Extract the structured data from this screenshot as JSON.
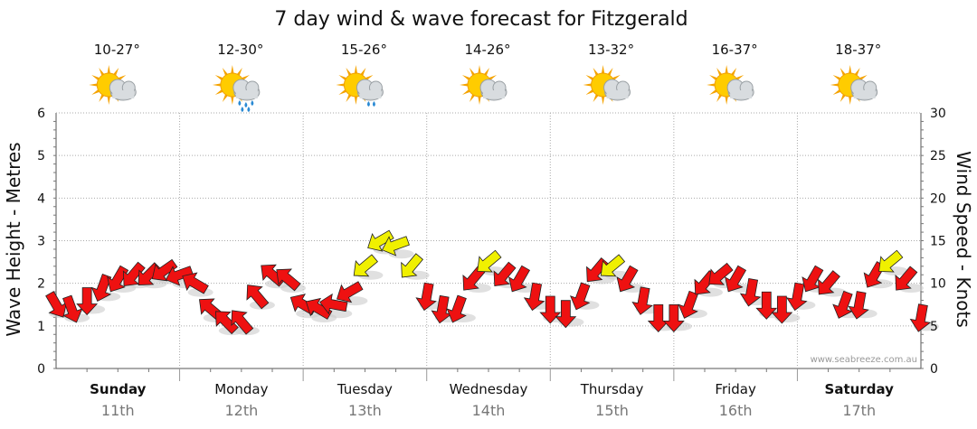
{
  "chart_data": {
    "type": "line",
    "title": "7 day wind & wave forecast for Fitzgerald",
    "ylabel_left": "Wave Height - Metres",
    "ylabel_right": "Wind Speed - Knots",
    "ylim_left": [
      0,
      6
    ],
    "ylim_right": [
      0,
      30
    ],
    "yticks_left": [
      "0",
      "1",
      "2",
      "3",
      "4",
      "5",
      "6"
    ],
    "yticks_right": [
      "0",
      "5",
      "10",
      "15",
      "20",
      "25",
      "30"
    ],
    "grid": true,
    "days": [
      {
        "name": "Sunday",
        "date": "11th",
        "temp": "10-27°",
        "weather": "partly-cloudy",
        "bold": true
      },
      {
        "name": "Monday",
        "date": "12th",
        "temp": "12-30°",
        "weather": "rain",
        "bold": false
      },
      {
        "name": "Tuesday",
        "date": "13th",
        "temp": "15-26°",
        "weather": "showers",
        "bold": false
      },
      {
        "name": "Wednesday",
        "date": "14th",
        "temp": "14-26°",
        "weather": "partly-cloudy",
        "bold": false
      },
      {
        "name": "Thursday",
        "date": "15th",
        "temp": "13-32°",
        "weather": "partly-cloudy",
        "bold": false
      },
      {
        "name": "Friday",
        "date": "16th",
        "temp": "16-37°",
        "weather": "partly-cloudy",
        "bold": false
      },
      {
        "name": "Saturday",
        "date": "17th",
        "temp": "18-37°",
        "weather": "partly-cloudy",
        "bold": true
      }
    ],
    "wind_series": {
      "name": "Wind",
      "x_hours": [
        0,
        3,
        6,
        9,
        12,
        15,
        18,
        21,
        24,
        27,
        30,
        33,
        36,
        39,
        42,
        45,
        48,
        51,
        54,
        57,
        60,
        63,
        66,
        69,
        72,
        75,
        78,
        81,
        84,
        87,
        90,
        93,
        96,
        99,
        102,
        105,
        108,
        111,
        114,
        117,
        120,
        123,
        126,
        129,
        132,
        135,
        138,
        141,
        144,
        147,
        150,
        153,
        156,
        159,
        162,
        165,
        168
      ],
      "knots": [
        7.5,
        7,
        8,
        9.5,
        10.5,
        11,
        11,
        11.5,
        11,
        10,
        7,
        5.5,
        5.5,
        8.5,
        11,
        10.5,
        7.5,
        7,
        7.5,
        9,
        12,
        15,
        14.5,
        12,
        8.5,
        7,
        7,
        10.5,
        12.5,
        11,
        10.5,
        8.5,
        7,
        6.5,
        8.5,
        11.5,
        12,
        10.5,
        8,
        6,
        6,
        7.5,
        10,
        11,
        10.5,
        9,
        7.5,
        7,
        8.5,
        10.5,
        10,
        7.5,
        7.5,
        11,
        12.5,
        10.5,
        6
      ],
      "direction_deg": [
        60,
        70,
        90,
        110,
        120,
        130,
        135,
        145,
        160,
        210,
        220,
        225,
        230,
        230,
        220,
        220,
        210,
        210,
        190,
        150,
        140,
        150,
        160,
        130,
        100,
        100,
        110,
        130,
        140,
        130,
        120,
        100,
        90,
        90,
        110,
        130,
        140,
        120,
        100,
        90,
        90,
        110,
        130,
        140,
        120,
        100,
        90,
        90,
        100,
        120,
        130,
        110,
        100,
        120,
        140,
        130,
        100
      ]
    },
    "wind_colors": {
      "strong": "#ee1111",
      "moderate": "#f0f000",
      "outline": "#222222"
    },
    "wave_shadow_color": "#cccccc",
    "credit": "www.seabreeze.com.au"
  }
}
